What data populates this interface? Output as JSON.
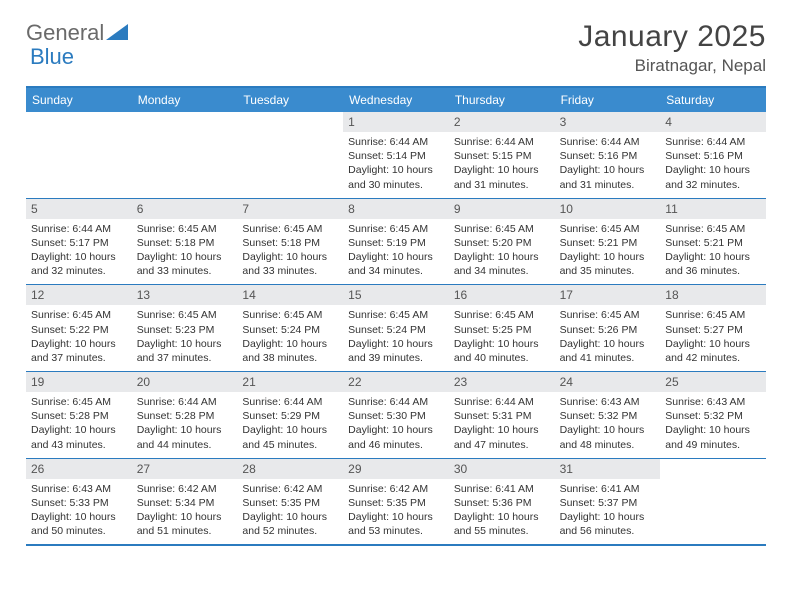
{
  "logo": {
    "text1": "General",
    "text2": "Blue",
    "shape_color": "#2b7bbf"
  },
  "title": "January 2025",
  "location": "Biratnagar, Nepal",
  "header_bg": "#3a8bce",
  "border_color": "#2b7bbf",
  "date_bg": "#e8e9eb",
  "day_headers": [
    "Sunday",
    "Monday",
    "Tuesday",
    "Wednesday",
    "Thursday",
    "Friday",
    "Saturday"
  ],
  "weeks": [
    [
      {
        "date": "",
        "sunrise": "",
        "sunset": "",
        "daylight": ""
      },
      {
        "date": "",
        "sunrise": "",
        "sunset": "",
        "daylight": ""
      },
      {
        "date": "",
        "sunrise": "",
        "sunset": "",
        "daylight": ""
      },
      {
        "date": "1",
        "sunrise": "Sunrise: 6:44 AM",
        "sunset": "Sunset: 5:14 PM",
        "daylight": "Daylight: 10 hours and 30 minutes."
      },
      {
        "date": "2",
        "sunrise": "Sunrise: 6:44 AM",
        "sunset": "Sunset: 5:15 PM",
        "daylight": "Daylight: 10 hours and 31 minutes."
      },
      {
        "date": "3",
        "sunrise": "Sunrise: 6:44 AM",
        "sunset": "Sunset: 5:16 PM",
        "daylight": "Daylight: 10 hours and 31 minutes."
      },
      {
        "date": "4",
        "sunrise": "Sunrise: 6:44 AM",
        "sunset": "Sunset: 5:16 PM",
        "daylight": "Daylight: 10 hours and 32 minutes."
      }
    ],
    [
      {
        "date": "5",
        "sunrise": "Sunrise: 6:44 AM",
        "sunset": "Sunset: 5:17 PM",
        "daylight": "Daylight: 10 hours and 32 minutes."
      },
      {
        "date": "6",
        "sunrise": "Sunrise: 6:45 AM",
        "sunset": "Sunset: 5:18 PM",
        "daylight": "Daylight: 10 hours and 33 minutes."
      },
      {
        "date": "7",
        "sunrise": "Sunrise: 6:45 AM",
        "sunset": "Sunset: 5:18 PM",
        "daylight": "Daylight: 10 hours and 33 minutes."
      },
      {
        "date": "8",
        "sunrise": "Sunrise: 6:45 AM",
        "sunset": "Sunset: 5:19 PM",
        "daylight": "Daylight: 10 hours and 34 minutes."
      },
      {
        "date": "9",
        "sunrise": "Sunrise: 6:45 AM",
        "sunset": "Sunset: 5:20 PM",
        "daylight": "Daylight: 10 hours and 34 minutes."
      },
      {
        "date": "10",
        "sunrise": "Sunrise: 6:45 AM",
        "sunset": "Sunset: 5:21 PM",
        "daylight": "Daylight: 10 hours and 35 minutes."
      },
      {
        "date": "11",
        "sunrise": "Sunrise: 6:45 AM",
        "sunset": "Sunset: 5:21 PM",
        "daylight": "Daylight: 10 hours and 36 minutes."
      }
    ],
    [
      {
        "date": "12",
        "sunrise": "Sunrise: 6:45 AM",
        "sunset": "Sunset: 5:22 PM",
        "daylight": "Daylight: 10 hours and 37 minutes."
      },
      {
        "date": "13",
        "sunrise": "Sunrise: 6:45 AM",
        "sunset": "Sunset: 5:23 PM",
        "daylight": "Daylight: 10 hours and 37 minutes."
      },
      {
        "date": "14",
        "sunrise": "Sunrise: 6:45 AM",
        "sunset": "Sunset: 5:24 PM",
        "daylight": "Daylight: 10 hours and 38 minutes."
      },
      {
        "date": "15",
        "sunrise": "Sunrise: 6:45 AM",
        "sunset": "Sunset: 5:24 PM",
        "daylight": "Daylight: 10 hours and 39 minutes."
      },
      {
        "date": "16",
        "sunrise": "Sunrise: 6:45 AM",
        "sunset": "Sunset: 5:25 PM",
        "daylight": "Daylight: 10 hours and 40 minutes."
      },
      {
        "date": "17",
        "sunrise": "Sunrise: 6:45 AM",
        "sunset": "Sunset: 5:26 PM",
        "daylight": "Daylight: 10 hours and 41 minutes."
      },
      {
        "date": "18",
        "sunrise": "Sunrise: 6:45 AM",
        "sunset": "Sunset: 5:27 PM",
        "daylight": "Daylight: 10 hours and 42 minutes."
      }
    ],
    [
      {
        "date": "19",
        "sunrise": "Sunrise: 6:45 AM",
        "sunset": "Sunset: 5:28 PM",
        "daylight": "Daylight: 10 hours and 43 minutes."
      },
      {
        "date": "20",
        "sunrise": "Sunrise: 6:44 AM",
        "sunset": "Sunset: 5:28 PM",
        "daylight": "Daylight: 10 hours and 44 minutes."
      },
      {
        "date": "21",
        "sunrise": "Sunrise: 6:44 AM",
        "sunset": "Sunset: 5:29 PM",
        "daylight": "Daylight: 10 hours and 45 minutes."
      },
      {
        "date": "22",
        "sunrise": "Sunrise: 6:44 AM",
        "sunset": "Sunset: 5:30 PM",
        "daylight": "Daylight: 10 hours and 46 minutes."
      },
      {
        "date": "23",
        "sunrise": "Sunrise: 6:44 AM",
        "sunset": "Sunset: 5:31 PM",
        "daylight": "Daylight: 10 hours and 47 minutes."
      },
      {
        "date": "24",
        "sunrise": "Sunrise: 6:43 AM",
        "sunset": "Sunset: 5:32 PM",
        "daylight": "Daylight: 10 hours and 48 minutes."
      },
      {
        "date": "25",
        "sunrise": "Sunrise: 6:43 AM",
        "sunset": "Sunset: 5:32 PM",
        "daylight": "Daylight: 10 hours and 49 minutes."
      }
    ],
    [
      {
        "date": "26",
        "sunrise": "Sunrise: 6:43 AM",
        "sunset": "Sunset: 5:33 PM",
        "daylight": "Daylight: 10 hours and 50 minutes."
      },
      {
        "date": "27",
        "sunrise": "Sunrise: 6:42 AM",
        "sunset": "Sunset: 5:34 PM",
        "daylight": "Daylight: 10 hours and 51 minutes."
      },
      {
        "date": "28",
        "sunrise": "Sunrise: 6:42 AM",
        "sunset": "Sunset: 5:35 PM",
        "daylight": "Daylight: 10 hours and 52 minutes."
      },
      {
        "date": "29",
        "sunrise": "Sunrise: 6:42 AM",
        "sunset": "Sunset: 5:35 PM",
        "daylight": "Daylight: 10 hours and 53 minutes."
      },
      {
        "date": "30",
        "sunrise": "Sunrise: 6:41 AM",
        "sunset": "Sunset: 5:36 PM",
        "daylight": "Daylight: 10 hours and 55 minutes."
      },
      {
        "date": "31",
        "sunrise": "Sunrise: 6:41 AM",
        "sunset": "Sunset: 5:37 PM",
        "daylight": "Daylight: 10 hours and 56 minutes."
      },
      {
        "date": "",
        "sunrise": "",
        "sunset": "",
        "daylight": ""
      }
    ]
  ]
}
